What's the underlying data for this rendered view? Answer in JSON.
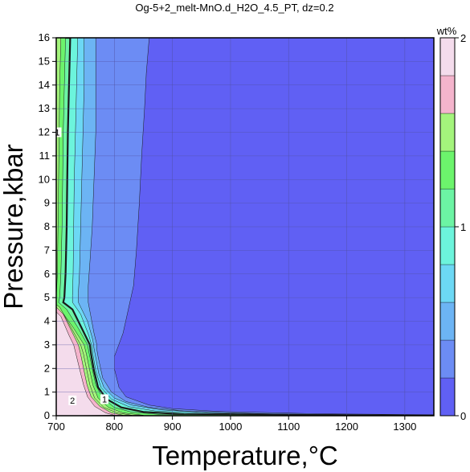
{
  "chart_data": {
    "type": "heatmap",
    "title": "Og-5+2_melt-MnO.d_H2O_4.5_PT, dz=0.2",
    "xlabel": "Temperature,°C",
    "ylabel": "Pressure,kbar",
    "xlim": [
      700,
      1350
    ],
    "ylim": [
      0,
      16
    ],
    "x_ticks": [
      700,
      800,
      900,
      1000,
      1100,
      1200,
      1300
    ],
    "y_ticks": [
      0,
      1,
      2,
      3,
      4,
      5,
      6,
      7,
      8,
      9,
      10,
      11,
      12,
      13,
      14,
      15,
      16
    ],
    "grid": true,
    "colorbar": {
      "label": "wt%",
      "range": [
        0,
        2
      ],
      "ticks": [
        0,
        1,
        2
      ],
      "levels": [
        {
          "from": 0.0,
          "to": 0.2,
          "color": "#6060f4"
        },
        {
          "from": 0.2,
          "to": 0.4,
          "color": "#6c8cf4"
        },
        {
          "from": 0.4,
          "to": 0.6,
          "color": "#6cb4f4"
        },
        {
          "from": 0.6,
          "to": 0.8,
          "color": "#6cd8f4"
        },
        {
          "from": 0.8,
          "to": 1.0,
          "color": "#6cf4dc"
        },
        {
          "from": 1.0,
          "to": 1.2,
          "color": "#6cf4a4"
        },
        {
          "from": 1.2,
          "to": 1.4,
          "color": "#6cf46c"
        },
        {
          "from": 1.4,
          "to": 1.6,
          "color": "#a4f47c"
        },
        {
          "from": 1.6,
          "to": 1.8,
          "color": "#f4b4cc"
        },
        {
          "from": 1.8,
          "to": 2.0,
          "color": "#f4dcec"
        }
      ]
    },
    "contour_labels": [
      {
        "text": "1",
        "T": 702,
        "P": 12.0
      },
      {
        "text": "1",
        "T": 783,
        "P": 0.7
      },
      {
        "text": "2",
        "T": 728,
        "P": 0.65
      }
    ],
    "regions": [
      {
        "level": 1,
        "points": [
          [
            700,
            16
          ],
          [
            860,
            16
          ],
          [
            855,
            14.5
          ],
          [
            852,
            13
          ],
          [
            847,
            11
          ],
          [
            843,
            9
          ],
          [
            838,
            7
          ],
          [
            833,
            5.5
          ],
          [
            815,
            3.5
          ],
          [
            800,
            2.5
          ],
          [
            800,
            2
          ],
          [
            808,
            1.2
          ],
          [
            820,
            0.8
          ],
          [
            860,
            0.45
          ],
          [
            900,
            0.3
          ],
          [
            980,
            0.18
          ],
          [
            1150,
            0.08
          ],
          [
            1350,
            0.04
          ],
          [
            1350,
            0
          ],
          [
            700,
            0
          ]
        ]
      },
      {
        "level": 2,
        "points": [
          [
            700,
            16
          ],
          [
            768,
            16
          ],
          [
            768,
            14
          ],
          [
            768,
            12
          ],
          [
            765,
            10
          ],
          [
            762,
            8
          ],
          [
            758,
            6.5
          ],
          [
            755,
            5.5
          ],
          [
            755,
            4.8
          ],
          [
            765,
            3.5
          ],
          [
            770,
            3.0
          ],
          [
            770,
            2.8
          ],
          [
            772,
            2.5
          ],
          [
            780,
            1.6
          ],
          [
            795,
            1.0
          ],
          [
            820,
            0.6
          ],
          [
            860,
            0.35
          ],
          [
            920,
            0.2
          ],
          [
            1000,
            0.12
          ],
          [
            1100,
            0.06
          ],
          [
            1350,
            0.03
          ],
          [
            1350,
            0
          ],
          [
            700,
            0
          ]
        ]
      },
      {
        "level": 3,
        "points": [
          [
            700,
            16
          ],
          [
            748,
            16
          ],
          [
            748,
            14
          ],
          [
            746,
            12
          ],
          [
            744,
            10
          ],
          [
            742,
            8
          ],
          [
            740,
            6
          ],
          [
            738,
            5.2
          ],
          [
            738,
            4.8
          ],
          [
            754,
            4.0
          ],
          [
            763,
            3.2
          ],
          [
            765,
            2.85
          ],
          [
            767,
            2.6
          ],
          [
            773,
            1.8
          ],
          [
            782,
            1.2
          ],
          [
            800,
            0.75
          ],
          [
            830,
            0.45
          ],
          [
            880,
            0.25
          ],
          [
            950,
            0.15
          ],
          [
            1050,
            0.08
          ],
          [
            1200,
            0.04
          ],
          [
            1350,
            0.02
          ],
          [
            1350,
            0
          ],
          [
            700,
            0
          ]
        ]
      },
      {
        "level": 4,
        "points": [
          [
            700,
            16
          ],
          [
            737,
            16
          ],
          [
            735,
            14
          ],
          [
            733,
            12
          ],
          [
            731,
            10
          ],
          [
            730,
            8
          ],
          [
            729,
            6
          ],
          [
            728,
            5.1
          ],
          [
            728,
            4.8
          ],
          [
            742,
            4.3
          ],
          [
            756,
            3.4
          ],
          [
            762,
            2.9
          ],
          [
            763,
            2.6
          ],
          [
            768,
            1.9
          ],
          [
            777,
            1.2
          ],
          [
            795,
            0.7
          ],
          [
            825,
            0.38
          ],
          [
            870,
            0.2
          ],
          [
            950,
            0.1
          ],
          [
            1350,
            0.01
          ],
          [
            1350,
            0
          ],
          [
            700,
            0
          ]
        ]
      },
      {
        "level": 5,
        "points": [
          [
            700,
            16
          ],
          [
            724,
            16
          ],
          [
            722,
            14
          ],
          [
            720,
            12
          ],
          [
            719,
            10
          ],
          [
            718,
            8
          ],
          [
            716,
            6
          ],
          [
            714,
            5.0
          ],
          [
            712,
            4.8
          ],
          [
            728,
            4.5
          ],
          [
            746,
            3.6
          ],
          [
            758,
            3.0
          ],
          [
            760,
            2.6
          ],
          [
            765,
            1.9
          ],
          [
            772,
            1.2
          ],
          [
            787,
            0.7
          ],
          [
            812,
            0.35
          ],
          [
            850,
            0.16
          ],
          [
            920,
            0.06
          ],
          [
            1350,
            0
          ],
          [
            700,
            0
          ]
        ]
      },
      {
        "level": 6,
        "points": [
          [
            700,
            16
          ],
          [
            716,
            16
          ],
          [
            714,
            14
          ],
          [
            712,
            12
          ],
          [
            711,
            10
          ],
          [
            710,
            8
          ],
          [
            708,
            6
          ],
          [
            706,
            5.0
          ],
          [
            704,
            4.8
          ],
          [
            718,
            4.5
          ],
          [
            738,
            3.7
          ],
          [
            754,
            3.0
          ],
          [
            757,
            2.6
          ],
          [
            762,
            2.0
          ],
          [
            768,
            1.3
          ],
          [
            780,
            0.75
          ],
          [
            800,
            0.35
          ],
          [
            830,
            0.15
          ],
          [
            880,
            0.05
          ],
          [
            1350,
            0
          ],
          [
            700,
            0
          ]
        ]
      },
      {
        "level": 7,
        "points": [
          [
            700,
            16
          ],
          [
            708,
            16
          ],
          [
            706,
            14
          ],
          [
            705,
            12
          ],
          [
            704,
            10
          ],
          [
            703,
            8
          ],
          [
            702,
            6
          ],
          [
            700,
            5.0
          ],
          [
            700,
            4.7
          ],
          [
            710,
            4.4
          ],
          [
            730,
            3.7
          ],
          [
            748,
            3.0
          ],
          [
            752,
            2.6
          ],
          [
            757,
            2.0
          ],
          [
            763,
            1.3
          ],
          [
            772,
            0.75
          ],
          [
            790,
            0.35
          ],
          [
            815,
            0.12
          ],
          [
            850,
            0.02
          ],
          [
            700,
            0
          ]
        ]
      },
      {
        "level": 7,
        "points": [
          [
            700,
            4.7
          ],
          [
            706,
            4.6
          ],
          [
            724,
            3.8
          ],
          [
            742,
            3.0
          ],
          [
            747,
            2.6
          ],
          [
            752,
            2.0
          ],
          [
            758,
            1.3
          ],
          [
            766,
            0.75
          ],
          [
            782,
            0.35
          ],
          [
            805,
            0.12
          ],
          [
            830,
            0.02
          ],
          [
            700,
            0
          ]
        ]
      },
      {
        "level": 8,
        "points": [
          [
            700,
            4.6
          ],
          [
            712,
            4.3
          ],
          [
            730,
            3.4
          ],
          [
            738,
            3.0
          ],
          [
            742,
            2.6
          ],
          [
            747,
            2.0
          ],
          [
            753,
            1.3
          ],
          [
            760,
            0.8
          ],
          [
            775,
            0.4
          ],
          [
            795,
            0.12
          ],
          [
            815,
            0.02
          ],
          [
            700,
            0
          ]
        ]
      },
      {
        "level": 9,
        "points": [
          [
            700,
            4.4
          ],
          [
            708,
            4.2
          ],
          [
            722,
            3.4
          ],
          [
            730,
            3.0
          ],
          [
            734,
            2.6
          ],
          [
            740,
            2.0
          ],
          [
            747,
            1.3
          ],
          [
            754,
            0.8
          ],
          [
            766,
            0.4
          ],
          [
            785,
            0.12
          ],
          [
            800,
            0.02
          ],
          [
            700,
            0
          ]
        ]
      }
    ]
  }
}
